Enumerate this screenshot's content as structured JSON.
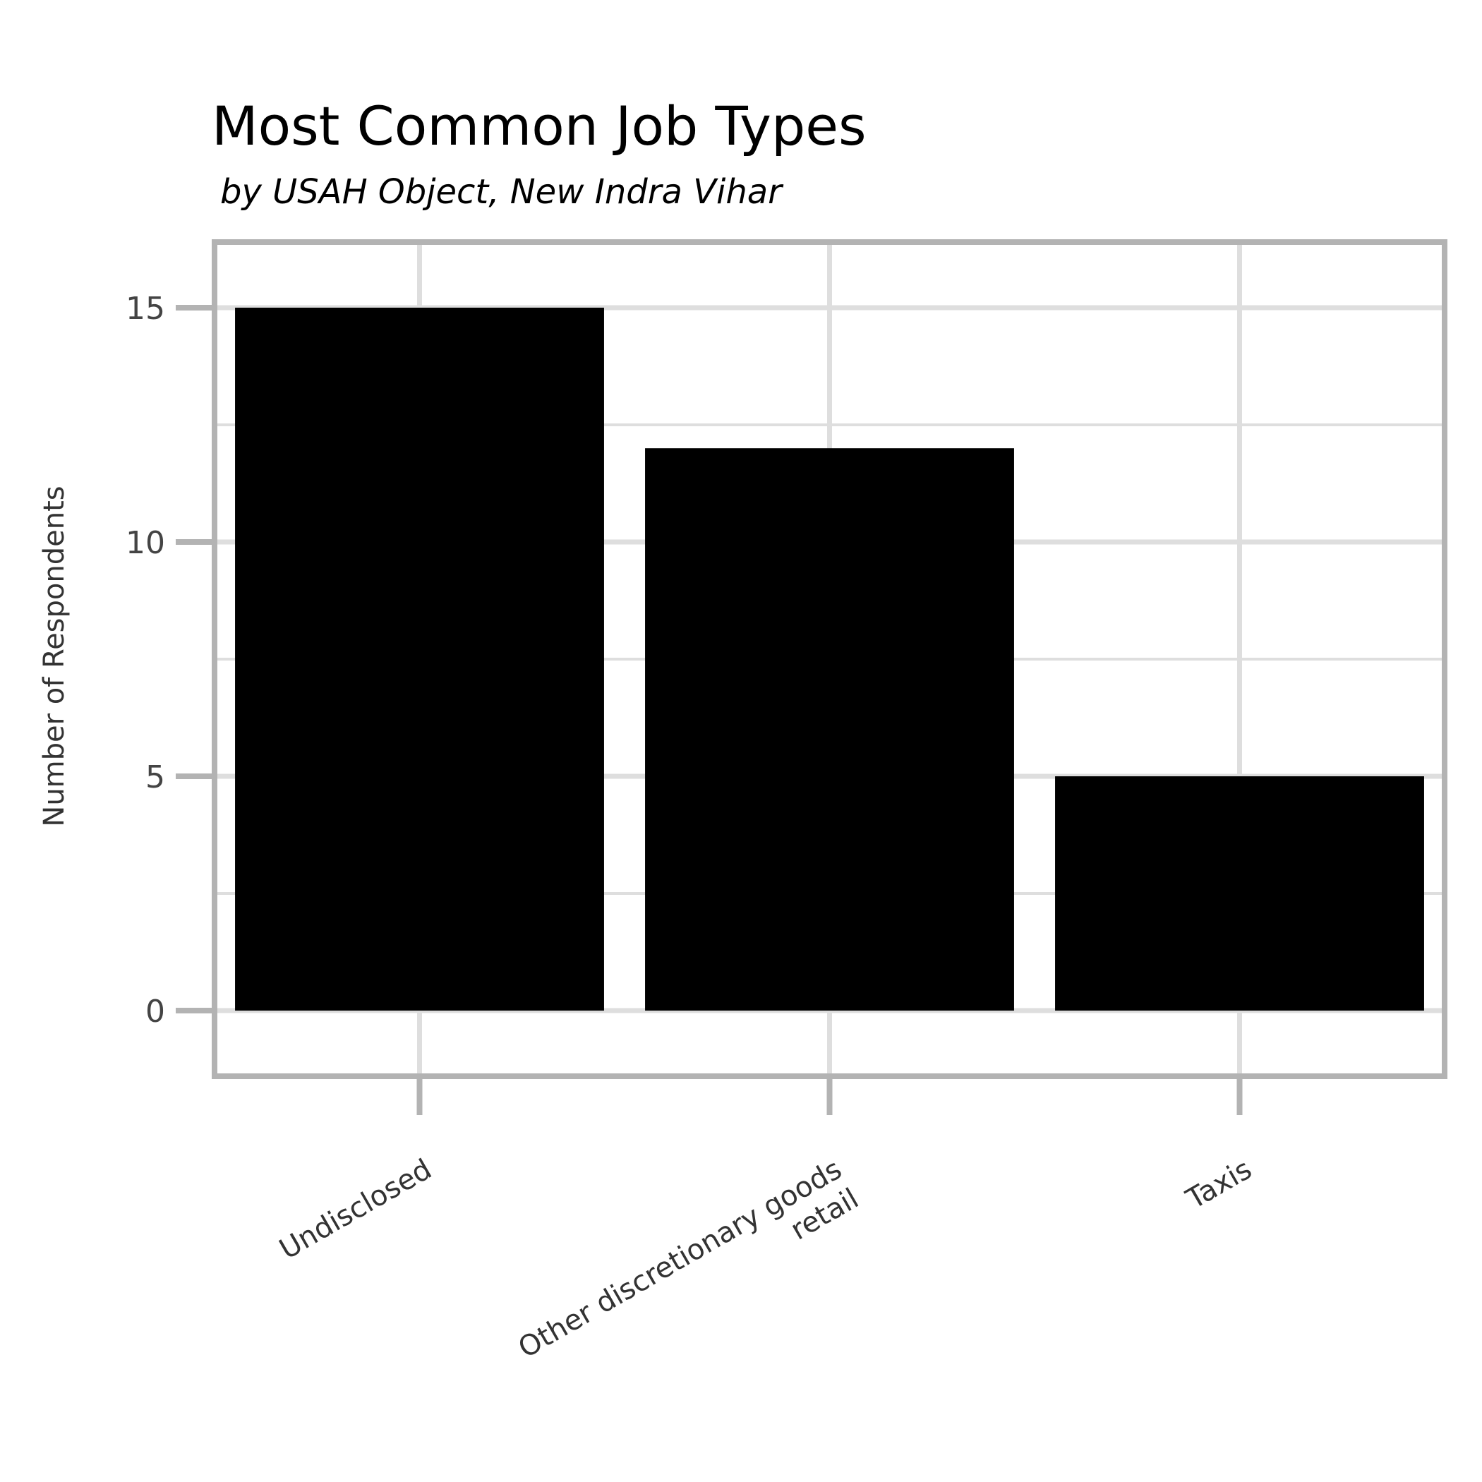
{
  "chart_data": {
    "type": "bar",
    "title": "Most Common Job Types",
    "subtitle": "by USAH Object, New Indra Vihar",
    "xlabel": "",
    "ylabel": "Number of Respondents",
    "categories": [
      [
        "Undisclosed"
      ],
      [
        "Other discretionary goods",
        "retail"
      ],
      [
        "Taxis"
      ]
    ],
    "values": [
      15,
      12,
      5
    ],
    "ylim": [
      -1.4,
      16.4
    ],
    "yticks": [
      0,
      5,
      10,
      15
    ],
    "grid": true,
    "legend": "none",
    "colors": {
      "bar": "#000000",
      "grid": "#dedede",
      "border": "#b3b3b3"
    }
  }
}
